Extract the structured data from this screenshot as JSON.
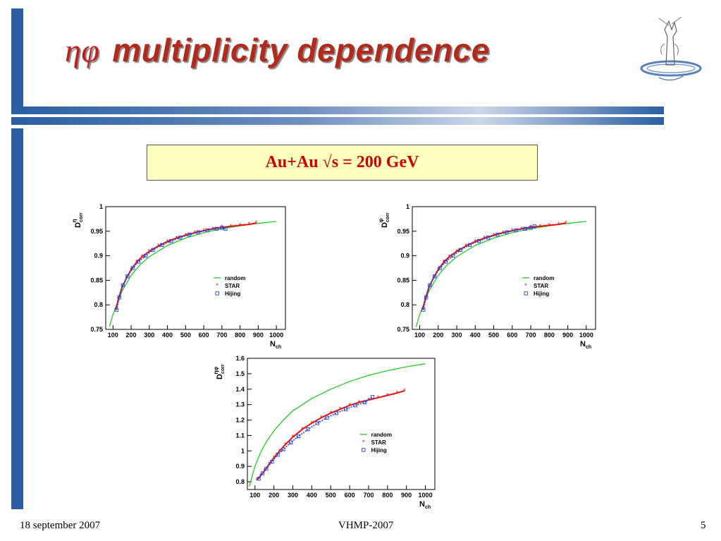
{
  "slide": {
    "title_greek": "ηφ",
    "title_text": "multiplicity dependence",
    "subtitle": "Au+Au √s = 200 GeV",
    "footer_left": "18 september 2007",
    "footer_center": "VHMP-2007",
    "footer_right": "5"
  },
  "chart_data": [
    {
      "type": "line",
      "ylabel_main": "D",
      "ylabel_sup": "η",
      "ylabel_sub": "corr",
      "xlabel_main": "N",
      "xlabel_sub": "ch",
      "xlim": [
        60,
        1050
      ],
      "ylim": [
        0.75,
        1.0
      ],
      "xticks": [
        100,
        200,
        300,
        400,
        500,
        600,
        700,
        800,
        900,
        1000
      ],
      "yticks": [
        0.75,
        0.8,
        0.85,
        0.9,
        0.95,
        1
      ],
      "ytick_labels": [
        "0.75",
        "0.8",
        "0.85",
        "0.9",
        "0.95",
        "1"
      ],
      "legend": [
        "random",
        "STAR",
        "Hijing"
      ],
      "legend_position": "right",
      "series": [
        {
          "name": "random",
          "color": "#22cc22",
          "x": [
            80,
            100,
            120,
            150,
            200,
            250,
            300,
            400,
            500,
            600,
            700,
            800,
            900,
            1000
          ],
          "y": [
            0.755,
            0.78,
            0.8,
            0.828,
            0.86,
            0.882,
            0.898,
            0.921,
            0.936,
            0.947,
            0.955,
            0.961,
            0.966,
            0.97
          ]
        },
        {
          "name": "STAR",
          "color": "#ee1111",
          "x": [
            115,
            130,
            150,
            175,
            200,
            230,
            260,
            300,
            350,
            400,
            450,
            500,
            550,
            600,
            650,
            700,
            750,
            800,
            850,
            890
          ],
          "y": [
            0.79,
            0.812,
            0.836,
            0.855,
            0.872,
            0.887,
            0.898,
            0.909,
            0.92,
            0.929,
            0.936,
            0.942,
            0.947,
            0.951,
            0.955,
            0.958,
            0.96,
            0.962,
            0.964,
            0.967
          ]
        },
        {
          "name": "Hijing",
          "color": "#2244dd",
          "x": [
            120,
            135,
            155,
            180,
            210,
            240,
            280,
            320,
            370,
            420,
            470,
            520,
            570,
            620,
            670,
            700,
            720
          ],
          "y": [
            0.79,
            0.815,
            0.84,
            0.858,
            0.875,
            0.888,
            0.9,
            0.912,
            0.922,
            0.93,
            0.937,
            0.943,
            0.948,
            0.952,
            0.955,
            0.957,
            0.955
          ]
        }
      ]
    },
    {
      "type": "line",
      "ylabel_main": "D",
      "ylabel_sup": "φ",
      "ylabel_sub": "corr",
      "xlabel_main": "N",
      "xlabel_sub": "ch",
      "xlim": [
        60,
        1050
      ],
      "ylim": [
        0.75,
        1.0
      ],
      "xticks": [
        100,
        200,
        300,
        400,
        500,
        600,
        700,
        800,
        900,
        1000
      ],
      "yticks": [
        0.75,
        0.8,
        0.85,
        0.9,
        0.95,
        1
      ],
      "ytick_labels": [
        "0.75",
        "0.8",
        "0.85",
        "0.9",
        "0.95",
        "1"
      ],
      "legend": [
        "random",
        "STAR",
        "Hijing"
      ],
      "legend_position": "right",
      "series": [
        {
          "name": "random",
          "color": "#22cc22",
          "x": [
            80,
            100,
            120,
            150,
            200,
            250,
            300,
            400,
            500,
            600,
            700,
            800,
            900,
            1000
          ],
          "y": [
            0.755,
            0.78,
            0.8,
            0.828,
            0.86,
            0.882,
            0.898,
            0.921,
            0.936,
            0.947,
            0.955,
            0.961,
            0.966,
            0.97
          ]
        },
        {
          "name": "STAR",
          "color": "#ee1111",
          "x": [
            115,
            130,
            150,
            175,
            200,
            230,
            260,
            300,
            350,
            400,
            450,
            500,
            550,
            600,
            650,
            700,
            750,
            800,
            850,
            890
          ],
          "y": [
            0.79,
            0.812,
            0.836,
            0.855,
            0.872,
            0.887,
            0.898,
            0.909,
            0.92,
            0.929,
            0.936,
            0.942,
            0.947,
            0.951,
            0.955,
            0.958,
            0.96,
            0.962,
            0.964,
            0.967
          ]
        },
        {
          "name": "Hijing",
          "color": "#2244dd",
          "x": [
            120,
            135,
            155,
            180,
            210,
            240,
            280,
            320,
            370,
            420,
            470,
            520,
            570,
            620,
            670,
            700,
            720
          ],
          "y": [
            0.79,
            0.815,
            0.84,
            0.858,
            0.875,
            0.888,
            0.9,
            0.912,
            0.922,
            0.93,
            0.937,
            0.943,
            0.948,
            0.952,
            0.955,
            0.957,
            0.96
          ]
        }
      ]
    },
    {
      "type": "line",
      "ylabel_main": "D",
      "ylabel_sup": "ηφ",
      "ylabel_sub": "corr",
      "xlabel_main": "N",
      "xlabel_sub": "ch",
      "xlim": [
        60,
        1050
      ],
      "ylim": [
        0.75,
        1.6
      ],
      "xticks": [
        100,
        200,
        300,
        400,
        500,
        600,
        700,
        800,
        900,
        1000
      ],
      "yticks": [
        0.8,
        0.9,
        1.0,
        1.1,
        1.2,
        1.3,
        1.4,
        1.5,
        1.6
      ],
      "ytick_labels": [
        "0.8",
        "0.9",
        "1",
        "1.1",
        "1.2",
        "1.3",
        "1.4",
        "1.5",
        "1.6"
      ],
      "legend": [
        "random",
        "STAR",
        "Hijing"
      ],
      "legend_position": "right",
      "series": [
        {
          "name": "random",
          "color": "#22cc22",
          "x": [
            70,
            100,
            130,
            160,
            200,
            250,
            300,
            400,
            500,
            600,
            700,
            800,
            900,
            1000
          ],
          "y": [
            0.77,
            0.9,
            0.99,
            1.06,
            1.13,
            1.2,
            1.26,
            1.34,
            1.4,
            1.45,
            1.49,
            1.52,
            1.545,
            1.565
          ]
        },
        {
          "name": "STAR",
          "color": "#ee1111",
          "x": [
            110,
            130,
            150,
            175,
            200,
            230,
            260,
            300,
            350,
            400,
            450,
            500,
            550,
            600,
            650,
            700,
            750,
            800,
            850,
            890
          ],
          "y": [
            0.81,
            0.84,
            0.87,
            0.915,
            0.955,
            1.0,
            1.04,
            1.09,
            1.14,
            1.18,
            1.215,
            1.245,
            1.27,
            1.295,
            1.315,
            1.33,
            1.345,
            1.36,
            1.375,
            1.39
          ]
        },
        {
          "name": "Hijing",
          "color": "#2244dd",
          "x": [
            120,
            140,
            160,
            190,
            220,
            250,
            290,
            330,
            380,
            430,
            480,
            530,
            580,
            630,
            680,
            720
          ],
          "y": [
            0.82,
            0.855,
            0.885,
            0.93,
            0.975,
            1.01,
            1.055,
            1.095,
            1.14,
            1.18,
            1.215,
            1.245,
            1.27,
            1.295,
            1.315,
            1.35
          ]
        }
      ]
    }
  ]
}
